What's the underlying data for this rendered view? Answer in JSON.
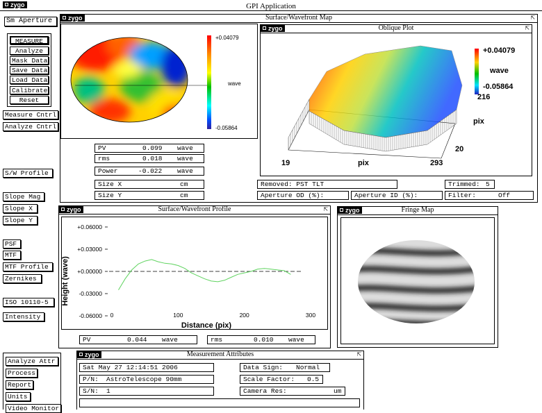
{
  "app": {
    "title": "GPI Application",
    "logo": "zygo"
  },
  "sidebar": {
    "aperture": "Sm Aperture",
    "commands": [
      "MEASURE",
      "Analyze",
      "Mask Data",
      "Save Data",
      "Load Data",
      "Calibrate",
      "Reset"
    ],
    "group1": [
      "Measure Cntrl",
      "Analyze Cntrl"
    ],
    "sw_profile": "S/W Profile",
    "slope": [
      "Slope Mag",
      "Slope X",
      "Slope Y"
    ],
    "optics": [
      "PSF",
      "MTF",
      "MTF Profile",
      "Zernikes"
    ],
    "iso": "ISO 10110-5",
    "intensity": "Intensity",
    "bottom": [
      "Analyze Attr",
      "Process",
      "Report",
      "Units",
      "Video Monitor"
    ]
  },
  "surface_map": {
    "title": "Surface/Wavefront Map",
    "scale_max": "+0.04079",
    "scale_min": "-0.05864",
    "scale_unit": "wave",
    "results": [
      {
        "label": "PV",
        "value": "0.099",
        "unit": "wave"
      },
      {
        "label": "rms",
        "value": "0.018",
        "unit": "wave"
      },
      {
        "label": "Power",
        "value": "-0.022",
        "unit": "wave"
      },
      {
        "label": "Size X",
        "value": "",
        "unit": "cm"
      },
      {
        "label": "Size Y",
        "value": "",
        "unit": "cm"
      }
    ]
  },
  "oblique": {
    "title": "Oblique Plot",
    "scale_max": "+0.04079",
    "scale_unit": "wave",
    "scale_min": "-0.05864",
    "x_start": "19",
    "x_end": "293",
    "x_label": "pix",
    "y_start": "20",
    "y_end": "216",
    "y_label": "pix"
  },
  "info": {
    "removed": "Removed: PST TLT",
    "trimmed_label": "Trimmed:",
    "trimmed_value": "5",
    "aperture_od": "Aperture OD (%):",
    "aperture_id": "Aperture ID (%):",
    "filter_label": "Filter:",
    "filter_value": "Off"
  },
  "profile": {
    "title": "Surface/Wavefront Profile",
    "pv_label": "PV",
    "pv_value": "0.044",
    "pv_unit": "wave",
    "rms_label": "rms",
    "rms_value": "0.010",
    "rms_unit": "wave"
  },
  "chart_data": {
    "type": "line",
    "xlabel": "Distance (pix)",
    "ylabel": "Height (wave)",
    "xlim": [
      0,
      300
    ],
    "ylim": [
      -0.06,
      0.06
    ],
    "x_ticks": [
      "0",
      "100",
      "200",
      "300"
    ],
    "y_ticks": [
      "+0.06000",
      "+0.03000",
      "+0.00000",
      "-0.03000",
      "-0.06000"
    ],
    "reference_line": 0,
    "series": [
      {
        "x": [
          10,
          20,
          30,
          40,
          50,
          60,
          70,
          80,
          90,
          100,
          110,
          120,
          130,
          140,
          150,
          160,
          170,
          180,
          190,
          200,
          210,
          220,
          230,
          240,
          250,
          260,
          270
        ],
        "y": [
          -0.025,
          -0.01,
          0.002,
          0.01,
          0.014,
          0.016,
          0.013,
          0.011,
          0.01,
          0.008,
          0.004,
          -0.002,
          -0.006,
          -0.01,
          -0.013,
          -0.014,
          -0.012,
          -0.008,
          -0.004,
          -0.002,
          0.0,
          0.003,
          0.004,
          0.003,
          0.002,
          0.001,
          -0.004
        ]
      }
    ]
  },
  "fringe": {
    "title": "Fringe Map"
  },
  "attributes": {
    "title": "Measurement Attributes",
    "date": "Sat May 27 12:14:51 2006",
    "part_label": "P/N:",
    "part_value": "AstroTelescope 90mm",
    "serial_label": "S/N:",
    "serial_value": "1",
    "sign_label": "Data Sign:",
    "sign_value": "Normal",
    "scale_label": "Scale Factor:",
    "scale_value": "0.5",
    "camera_label": "Camera Res:",
    "camera_unit": "um"
  },
  "colors": {
    "background": "#ffffff",
    "title_black": "#000000",
    "trace": "#5fd35f"
  }
}
